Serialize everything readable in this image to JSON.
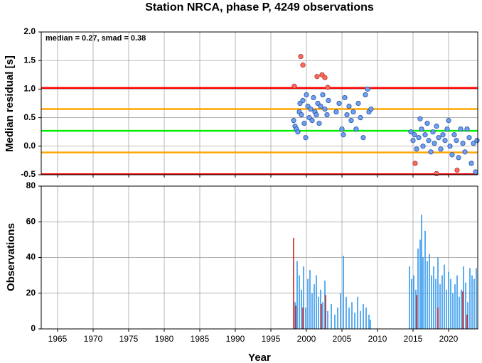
{
  "chart_data": [
    {
      "type": "scatter",
      "title": "Station NRCA, phase P, 4249 observations",
      "y_label": "Median residual [s]",
      "annotation": "median = 0.27, smad = 0.38",
      "xlim": [
        1962.7,
        2024.1
      ],
      "xticks": [
        1965,
        1970,
        1975,
        1980,
        1985,
        1990,
        1995,
        2000,
        2005,
        2010,
        2015,
        2020
      ],
      "ylim": [
        -0.5,
        2.0
      ],
      "yticks": [
        -0.5,
        {
          "value": 0,
          "label": "0.0"
        },
        0.5,
        {
          "value": 1,
          "label": "1.0"
        },
        1.5,
        {
          "value": 2,
          "label": "2.0"
        }
      ],
      "grid": true,
      "hlines": [
        {
          "value": 1.02,
          "color": "#ff0000"
        },
        {
          "value": 0.65,
          "color": "#ffa500"
        },
        {
          "value": 0.27,
          "color": "#00ee00"
        },
        {
          "value": -0.11,
          "color": "#ffa500"
        },
        {
          "value": -0.49,
          "color": "#ff0000"
        }
      ],
      "series": [
        {
          "color": "#6fa0f0",
          "x": [
            1998.2,
            1998.4,
            1998.6,
            1998.8,
            1999.0,
            1999.1,
            1999.3,
            1999.5,
            1999.7,
            1999.9,
            2000.0,
            2000.2,
            2000.4,
            2000.6,
            2000.8,
            2001.0,
            2001.2,
            2001.4,
            2001.6,
            2001.8,
            2002.0,
            2002.3,
            2002.6,
            2002.9,
            2003.1,
            2004.2,
            2004.6,
            2005.0,
            2005.2,
            2005.4,
            2005.7,
            2006.0,
            2006.3,
            2006.6,
            2007.0,
            2007.3,
            2007.6,
            2008.0,
            2008.3,
            2008.6,
            2008.8,
            2009.1,
            2014.7,
            2015.0,
            2015.2,
            2015.5,
            2015.8,
            2016.0,
            2016.2,
            2016.4,
            2016.7,
            2017.0,
            2017.2,
            2017.5,
            2017.8,
            2018.0,
            2018.3,
            2018.6,
            2018.9,
            2019.2,
            2019.5,
            2019.8,
            2020.0,
            2020.2,
            2020.5,
            2020.8,
            2021.1,
            2021.4,
            2021.7,
            2022.0,
            2022.3,
            2022.6,
            2022.9,
            2023.2,
            2023.5,
            2023.8,
            2024.0
          ],
          "values": [
            0.45,
            0.35,
            0.3,
            0.25,
            0.6,
            0.75,
            0.55,
            0.8,
            0.4,
            0.15,
            0.9,
            0.7,
            0.5,
            0.65,
            0.45,
            0.85,
            0.6,
            0.55,
            0.75,
            0.4,
            0.7,
            0.9,
            0.65,
            0.55,
            0.8,
            0.6,
            0.75,
            0.3,
            0.2,
            0.85,
            0.55,
            0.7,
            0.45,
            0.6,
            0.3,
            0.75,
            0.5,
            0.15,
            0.9,
            1.0,
            0.6,
            0.65,
            0.25,
            0.1,
            0.2,
            -0.05,
            0.15,
            0.48,
            0.3,
            0.0,
            0.2,
            0.4,
            0.1,
            -0.1,
            0.25,
            0.05,
            0.35,
            0.15,
            -0.05,
            0.2,
            0.1,
            0.3,
            0.45,
            0.0,
            -0.15,
            0.2,
            0.1,
            -0.2,
            0.3,
            0.05,
            -0.1,
            0.3,
            0.15,
            -0.3,
            0.05,
            -0.45,
            0.1
          ]
        },
        {
          "color": "#ff6a5a",
          "x": [
            1998.3,
            1999.2,
            1999.5,
            2001.5,
            2002.2,
            2002.6,
            2003.0,
            2015.3,
            2018.3,
            2021.2
          ],
          "values": [
            1.05,
            1.57,
            1.42,
            1.22,
            1.25,
            1.2,
            1.03,
            -0.3,
            -0.48,
            -0.42
          ]
        }
      ]
    },
    {
      "type": "bar",
      "x_label": "Year",
      "y_label": "Observations",
      "xlim": [
        1962.7,
        2024.1
      ],
      "xticks": [
        1965,
        1970,
        1975,
        1980,
        1985,
        1990,
        1995,
        2000,
        2005,
        2010,
        2015,
        2020
      ],
      "ylim": [
        0,
        80
      ],
      "yticks": [
        0,
        20,
        40,
        60,
        80
      ],
      "grid": true,
      "series": [
        {
          "color": "#3399ee",
          "x": [
            1998.4,
            1998.7,
            1999.0,
            1999.3,
            1999.6,
            1999.9,
            2000.2,
            2000.5,
            2000.8,
            2001.1,
            2001.4,
            2001.7,
            2002.0,
            2002.3,
            2002.6,
            2003.0,
            2003.5,
            2004.0,
            2004.4,
            2004.8,
            2005.2,
            2005.6,
            2006.0,
            2006.4,
            2006.8,
            2007.2,
            2007.6,
            2008.0,
            2008.4,
            2008.8,
            2009.0,
            2014.5,
            2014.8,
            2015.1,
            2015.4,
            2015.7,
            2016.0,
            2016.2,
            2016.4,
            2016.7,
            2017.0,
            2017.3,
            2017.6,
            2017.9,
            2018.2,
            2018.5,
            2018.8,
            2019.1,
            2019.4,
            2019.7,
            2020.0,
            2020.3,
            2020.6,
            2020.9,
            2021.2,
            2021.5,
            2021.8,
            2022.1,
            2022.4,
            2022.7,
            2023.0,
            2023.3,
            2023.6,
            2023.9
          ],
          "values": [
            15,
            38,
            30,
            22,
            35,
            12,
            28,
            33,
            20,
            25,
            30,
            18,
            22,
            15,
            27,
            10,
            14,
            8,
            12,
            20,
            41,
            18,
            12,
            15,
            9,
            18,
            10,
            14,
            12,
            8,
            5,
            35,
            28,
            30,
            22,
            45,
            50,
            64,
            40,
            55,
            38,
            42,
            30,
            35,
            28,
            40,
            25,
            30,
            36,
            22,
            32,
            28,
            20,
            25,
            30,
            18,
            22,
            35,
            26,
            15,
            34,
            30,
            28,
            34
          ]
        },
        {
          "color": "#cc2222",
          "x": [
            1998.2,
            1998.5,
            1999.5,
            2002.1,
            2002.7,
            2015.5,
            2018.5,
            2022.0,
            2022.6
          ],
          "values": [
            51,
            13,
            12,
            14,
            19,
            19,
            12,
            21,
            8
          ]
        }
      ]
    }
  ]
}
